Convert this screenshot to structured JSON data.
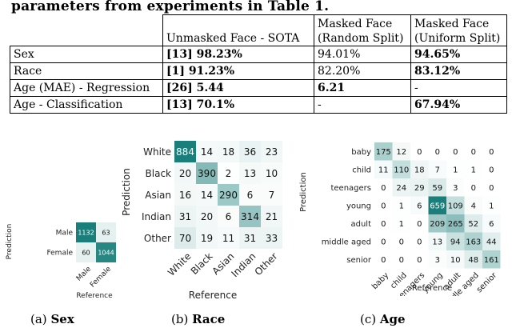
{
  "header_text": "parameters from experiments in Table 1.",
  "table": {
    "headers": [
      [
        "",
        ""
      ],
      [
        "",
        "Unmasked Face - SOTA"
      ],
      [
        "Masked Face",
        "(Random Split)"
      ],
      [
        "Masked Face",
        "(Uniform Split)"
      ]
    ],
    "rows": [
      {
        "label": "Sex",
        "sota_ref": "[13]",
        "sota_val": "98.23%",
        "random": "94.01%",
        "uniform": "94.65%",
        "bold_random": false,
        "bold_uniform": true
      },
      {
        "label": "Race",
        "sota_ref": "[1]",
        "sota_val": "91.23%",
        "random": "82.20%",
        "uniform": "83.12%",
        "bold_random": false,
        "bold_uniform": true
      },
      {
        "label": "Age (MAE) - Regression",
        "sota_ref": "[26]",
        "sota_val": "5.44",
        "random": "6.21",
        "uniform": "-",
        "bold_random": true,
        "bold_uniform": false
      },
      {
        "label": "Age - Classification",
        "sota_ref": "[13]",
        "sota_val": "70.1%",
        "random": "-",
        "uniform": "67.94%",
        "bold_random": false,
        "bold_uniform": true
      }
    ]
  },
  "chart_data": [
    {
      "type": "heatmap",
      "title": "",
      "xlabel": "Reference",
      "ylabel": "Prediction",
      "row_labels": [
        "Male",
        "Female"
      ],
      "col_labels": [
        "Male",
        "Female"
      ],
      "values": [
        [
          1132,
          63
        ],
        [
          60,
          1044
        ]
      ],
      "colormap": [
        "#ffffff",
        "#1a7f7a"
      ]
    },
    {
      "type": "heatmap",
      "title": "",
      "xlabel": "Reference",
      "ylabel": "Prediction",
      "row_labels": [
        "White",
        "Black",
        "Asian",
        "Indian",
        "Other"
      ],
      "col_labels": [
        "White",
        "Black",
        "Asian",
        "Indian",
        "Other"
      ],
      "values": [
        [
          884,
          14,
          18,
          36,
          23
        ],
        [
          20,
          390,
          2,
          13,
          10
        ],
        [
          16,
          14,
          290,
          6,
          7
        ],
        [
          31,
          20,
          6,
          314,
          21
        ],
        [
          70,
          19,
          11,
          31,
          33
        ]
      ],
      "colormap": [
        "#ffffff",
        "#1a7f7a"
      ]
    },
    {
      "type": "heatmap",
      "title": "",
      "xlabel": "Reference",
      "ylabel": "Prediction",
      "row_labels": [
        "baby",
        "child",
        "teenagers",
        "young",
        "adult",
        "middle aged",
        "senior"
      ],
      "col_labels": [
        "baby",
        "child",
        "teenagers",
        "young",
        "adult",
        "middle aged",
        "senior"
      ],
      "values": [
        [
          175,
          12,
          0,
          0,
          0,
          0,
          0
        ],
        [
          11,
          110,
          18,
          7,
          1,
          1,
          0
        ],
        [
          0,
          24,
          29,
          59,
          3,
          0,
          0
        ],
        [
          0,
          1,
          6,
          659,
          109,
          4,
          1
        ],
        [
          0,
          1,
          0,
          209,
          265,
          52,
          6
        ],
        [
          0,
          0,
          0,
          13,
          94,
          163,
          44
        ],
        [
          0,
          0,
          0,
          3,
          10,
          48,
          161
        ]
      ],
      "colormap": [
        "#ffffff",
        "#1a7f7a"
      ]
    }
  ],
  "captions": [
    {
      "prefix": "(a)",
      "label": "Sex"
    },
    {
      "prefix": "(b)",
      "label": "Race"
    },
    {
      "prefix": "(c)",
      "label": "Age"
    }
  ]
}
